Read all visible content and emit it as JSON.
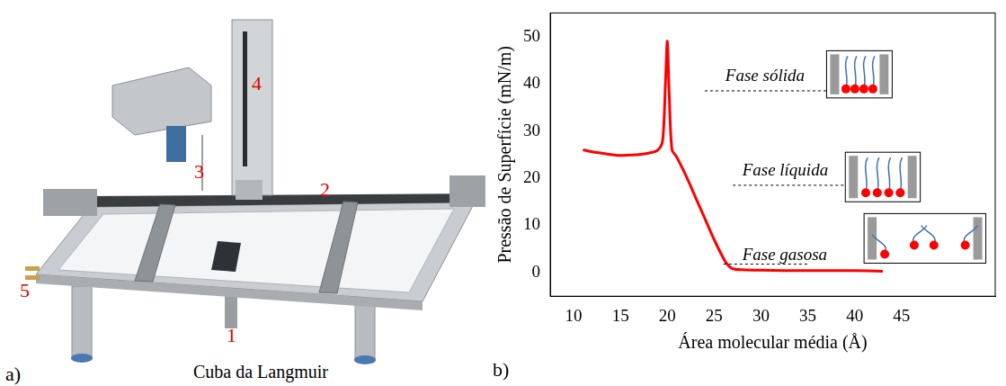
{
  "figure": {
    "panel_a": {
      "letter": "a)",
      "caption": "Cuba da Langmuir",
      "labels": [
        "1",
        "2",
        "3",
        "4",
        "5"
      ]
    },
    "panel_b": {
      "letter": "b)"
    }
  },
  "chart_data": {
    "type": "line",
    "x_label": "Área molecular média (Å)",
    "y_label": "Pressão de Superfície (mN/m)",
    "x": [
      11,
      12,
      13,
      14,
      15,
      16,
      17,
      18,
      19,
      19.5,
      19.8,
      20,
      20.2,
      20.5,
      21,
      22,
      23,
      24,
      25,
      26,
      26.5,
      27,
      28,
      30,
      35,
      40,
      43
    ],
    "values": [
      26,
      25.6,
      25.3,
      25,
      24.8,
      24.9,
      25,
      25.3,
      26,
      28,
      40,
      49,
      38,
      26,
      24.5,
      20.5,
      16,
      11.5,
      7,
      3,
      1.5,
      0.8,
      0.6,
      0.5,
      0.4,
      0.4,
      0.3
    ],
    "color": "#ff0000",
    "xlim": [
      7.5,
      55
    ],
    "ylim": [
      -5,
      55
    ],
    "xticks": [
      10,
      15,
      20,
      25,
      30,
      35,
      40,
      45
    ],
    "yticks": [
      0,
      10,
      20,
      30,
      40,
      50
    ],
    "grid": false,
    "annotations": [
      "Fase sólida",
      "Fase líquida",
      "Fase gasosa"
    ]
  }
}
